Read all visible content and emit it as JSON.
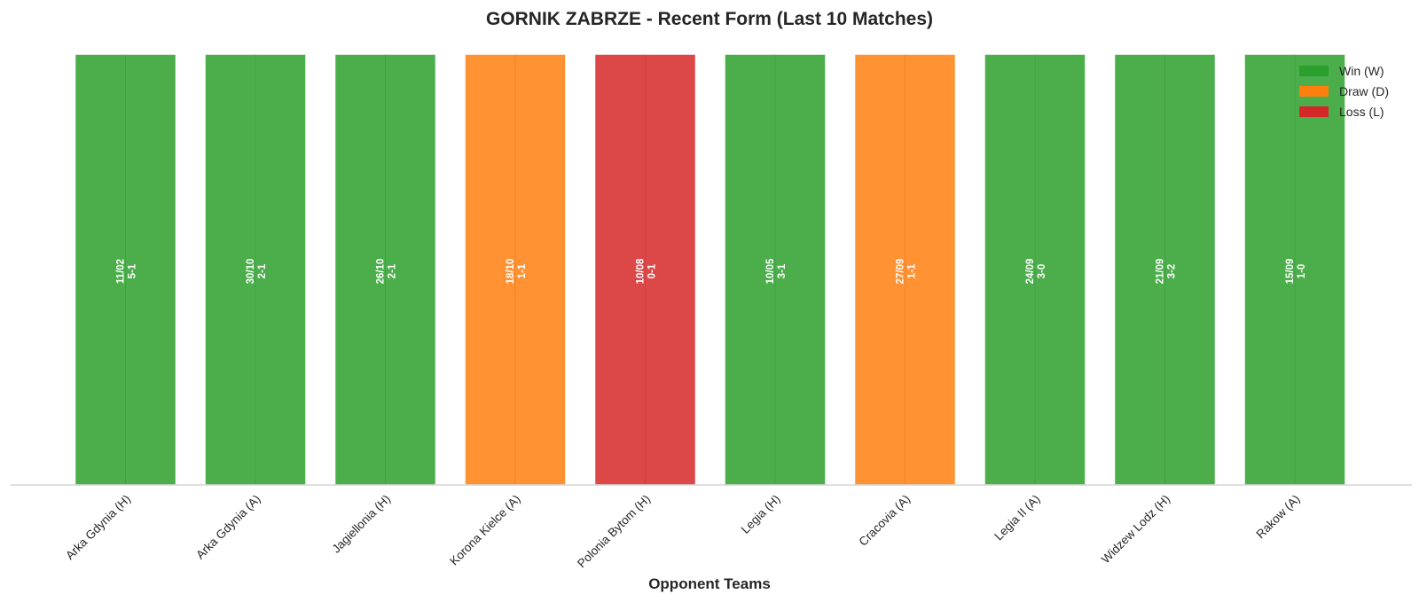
{
  "chart_data": {
    "type": "bar",
    "title": "GORNIK ZABRZE - Recent Form (Last 10 Matches)",
    "xlabel": "Opponent Teams",
    "ylabel": "",
    "ylim": [
      0,
      1
    ],
    "grid": false,
    "legend_position": "top-right",
    "categories": [
      "Arka Gdynia (H)",
      "Arka Gdynia (A)",
      "Jagiellonia (H)",
      "Korona Kielce (A)",
      "Polonia Bytom (H)",
      "Legia (H)",
      "Cracovia (A)",
      "Legia II (A)",
      "Widzew Lodz (H)",
      "Rakow (A)"
    ],
    "values": [
      1,
      1,
      1,
      1,
      1,
      1,
      1,
      1,
      1,
      1
    ],
    "results": [
      "W",
      "W",
      "W",
      "D",
      "L",
      "W",
      "D",
      "W",
      "W",
      "W"
    ],
    "dates": [
      "11/02",
      "30/10",
      "26/10",
      "18/10",
      "10/08",
      "10/05",
      "27/09",
      "24/09",
      "21/09",
      "15/09"
    ],
    "scores": [
      "5-1",
      "2-1",
      "2-1",
      "1-1",
      "0-1",
      "3-1",
      "1-1",
      "3-0",
      "3-2",
      "1-0"
    ],
    "legend": [
      {
        "key": "W",
        "label": "Win (W)",
        "color": "#2ca02c"
      },
      {
        "key": "D",
        "label": "Draw (D)",
        "color": "#ff7f0e"
      },
      {
        "key": "L",
        "label": "Loss (L)",
        "color": "#d62728"
      }
    ],
    "bar_opacity": 0.85
  }
}
